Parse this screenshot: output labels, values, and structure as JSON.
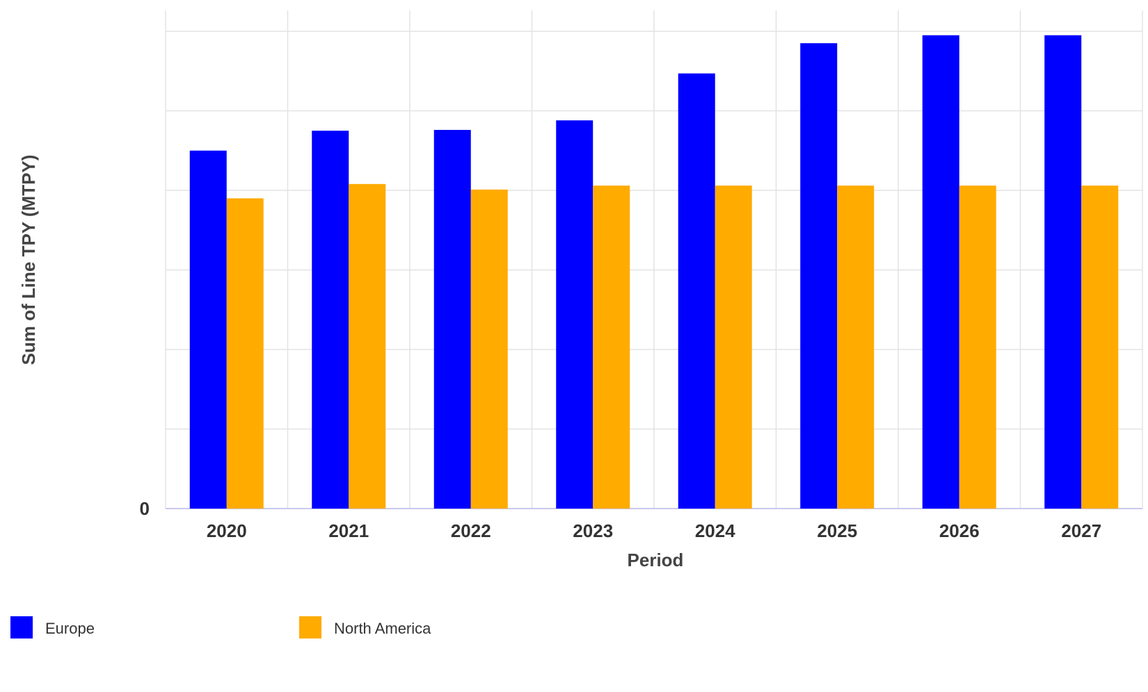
{
  "chart_data": {
    "type": "bar",
    "title": "",
    "xlabel": "Period",
    "ylabel": "Sum of Line TPY (MTPY)",
    "categories": [
      "2020",
      "2021",
      "2022",
      "2023",
      "2024",
      "2025",
      "2026",
      "2027"
    ],
    "series": [
      {
        "name": "Europe",
        "color": "#0000FF",
        "values": [
          4.5,
          4.75,
          4.76,
          4.88,
          5.47,
          5.85,
          5.95,
          5.95
        ]
      },
      {
        "name": "North America",
        "color": "#FFAB00",
        "values": [
          3.9,
          4.08,
          4.01,
          4.06,
          4.06,
          4.06,
          4.06,
          4.06
        ]
      }
    ],
    "ylim": [
      0,
      6
    ],
    "y_tick_labels": [
      "0"
    ],
    "grid": true,
    "legend_position": "bottom-left"
  }
}
